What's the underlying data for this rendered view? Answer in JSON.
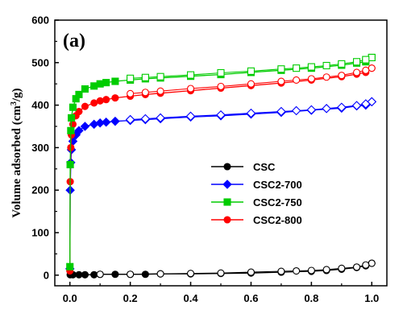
{
  "chart_data": {
    "type": "scatter",
    "panel_label": "(a)",
    "xlabel": "",
    "ylabel_main": "Volume adsorbed (cm",
    "ylabel_sup": "3",
    "ylabel_tail": "/g)",
    "xlim": [
      -0.05,
      1.05
    ],
    "ylim": [
      -25,
      600
    ],
    "xticks": [
      "0.0",
      "0.2",
      "0.4",
      "0.6",
      "0.8",
      "1.0"
    ],
    "yticks": [
      "0",
      "100",
      "200",
      "300",
      "400",
      "500",
      "600"
    ],
    "legend_position": "center-right",
    "series": [
      {
        "name": "CSC",
        "color": "#000000",
        "marker": "circle",
        "adsorption": [
          [
            0.001,
            1
          ],
          [
            0.01,
            1
          ],
          [
            0.03,
            1
          ],
          [
            0.05,
            1
          ],
          [
            0.08,
            1
          ],
          [
            0.1,
            2
          ],
          [
            0.15,
            2
          ],
          [
            0.2,
            2
          ],
          [
            0.25,
            2
          ],
          [
            0.3,
            3
          ],
          [
            0.4,
            3
          ],
          [
            0.5,
            4
          ],
          [
            0.6,
            5
          ],
          [
            0.7,
            7
          ],
          [
            0.8,
            9
          ],
          [
            0.85,
            11
          ],
          [
            0.9,
            14
          ],
          [
            0.95,
            18
          ],
          [
            0.98,
            22
          ],
          [
            1.0,
            28
          ]
        ],
        "desorption": [
          [
            1.0,
            28
          ],
          [
            0.98,
            24
          ],
          [
            0.95,
            19
          ],
          [
            0.9,
            16
          ],
          [
            0.85,
            13
          ],
          [
            0.8,
            11
          ],
          [
            0.75,
            10
          ],
          [
            0.7,
            9
          ],
          [
            0.6,
            7
          ],
          [
            0.5,
            5
          ],
          [
            0.4,
            4
          ],
          [
            0.3,
            3
          ],
          [
            0.2,
            2
          ],
          [
            0.1,
            2
          ]
        ]
      },
      {
        "name": "CSC2-700",
        "color": "#0000ff",
        "marker": "diamond",
        "adsorption": [
          [
            0.0,
            15
          ],
          [
            0.001,
            200
          ],
          [
            0.003,
            265
          ],
          [
            0.005,
            295
          ],
          [
            0.01,
            315
          ],
          [
            0.02,
            330
          ],
          [
            0.03,
            340
          ],
          [
            0.05,
            350
          ],
          [
            0.08,
            355
          ],
          [
            0.1,
            358
          ],
          [
            0.12,
            360
          ],
          [
            0.15,
            362
          ],
          [
            0.2,
            364
          ],
          [
            0.25,
            366
          ],
          [
            0.3,
            368
          ],
          [
            0.4,
            372
          ],
          [
            0.5,
            375
          ],
          [
            0.6,
            379
          ],
          [
            0.7,
            383
          ],
          [
            0.8,
            388
          ],
          [
            0.9,
            393
          ],
          [
            0.95,
            398
          ],
          [
            0.98,
            400
          ],
          [
            1.0,
            408
          ]
        ],
        "desorption": [
          [
            1.0,
            408
          ],
          [
            0.98,
            403
          ],
          [
            0.95,
            399
          ],
          [
            0.9,
            395
          ],
          [
            0.85,
            392
          ],
          [
            0.8,
            389
          ],
          [
            0.75,
            387
          ],
          [
            0.7,
            385
          ],
          [
            0.6,
            381
          ],
          [
            0.5,
            377
          ],
          [
            0.4,
            374
          ],
          [
            0.3,
            370
          ],
          [
            0.25,
            368
          ],
          [
            0.2,
            366
          ]
        ]
      },
      {
        "name": "CSC2-750",
        "color": "#00cc00",
        "marker": "square",
        "adsorption": [
          [
            0.0,
            20
          ],
          [
            0.001,
            260
          ],
          [
            0.003,
            340
          ],
          [
            0.005,
            370
          ],
          [
            0.01,
            395
          ],
          [
            0.02,
            415
          ],
          [
            0.03,
            425
          ],
          [
            0.05,
            438
          ],
          [
            0.08,
            445
          ],
          [
            0.1,
            450
          ],
          [
            0.12,
            453
          ],
          [
            0.15,
            456
          ],
          [
            0.2,
            459
          ],
          [
            0.25,
            462
          ],
          [
            0.3,
            464
          ],
          [
            0.4,
            468
          ],
          [
            0.5,
            472
          ],
          [
            0.6,
            477
          ],
          [
            0.7,
            482
          ],
          [
            0.8,
            487
          ],
          [
            0.9,
            494
          ],
          [
            0.95,
            499
          ],
          [
            0.98,
            502
          ],
          [
            1.0,
            512
          ]
        ],
        "desorption": [
          [
            1.0,
            512
          ],
          [
            0.98,
            507
          ],
          [
            0.95,
            502
          ],
          [
            0.9,
            497
          ],
          [
            0.85,
            493
          ],
          [
            0.8,
            490
          ],
          [
            0.75,
            487
          ],
          [
            0.7,
            485
          ],
          [
            0.6,
            480
          ],
          [
            0.5,
            476
          ],
          [
            0.4,
            471
          ],
          [
            0.3,
            467
          ],
          [
            0.25,
            465
          ],
          [
            0.2,
            463
          ]
        ]
      },
      {
        "name": "CSC2-800",
        "color": "#ff0000",
        "marker": "circle",
        "adsorption": [
          [
            0.0,
            10
          ],
          [
            0.001,
            220
          ],
          [
            0.003,
            300
          ],
          [
            0.005,
            330
          ],
          [
            0.01,
            355
          ],
          [
            0.02,
            375
          ],
          [
            0.03,
            385
          ],
          [
            0.05,
            397
          ],
          [
            0.08,
            405
          ],
          [
            0.1,
            410
          ],
          [
            0.12,
            413
          ],
          [
            0.15,
            417
          ],
          [
            0.2,
            421
          ],
          [
            0.25,
            425
          ],
          [
            0.3,
            428
          ],
          [
            0.4,
            434
          ],
          [
            0.5,
            440
          ],
          [
            0.6,
            446
          ],
          [
            0.7,
            452
          ],
          [
            0.8,
            459
          ],
          [
            0.9,
            467
          ],
          [
            0.95,
            473
          ],
          [
            0.98,
            477
          ],
          [
            1.0,
            487
          ]
        ],
        "desorption": [
          [
            1.0,
            487
          ],
          [
            0.98,
            482
          ],
          [
            0.95,
            477
          ],
          [
            0.9,
            470
          ],
          [
            0.85,
            466
          ],
          [
            0.8,
            462
          ],
          [
            0.75,
            459
          ],
          [
            0.7,
            456
          ],
          [
            0.6,
            450
          ],
          [
            0.5,
            444
          ],
          [
            0.4,
            439
          ],
          [
            0.3,
            433
          ],
          [
            0.25,
            430
          ],
          [
            0.2,
            427
          ]
        ]
      }
    ]
  }
}
